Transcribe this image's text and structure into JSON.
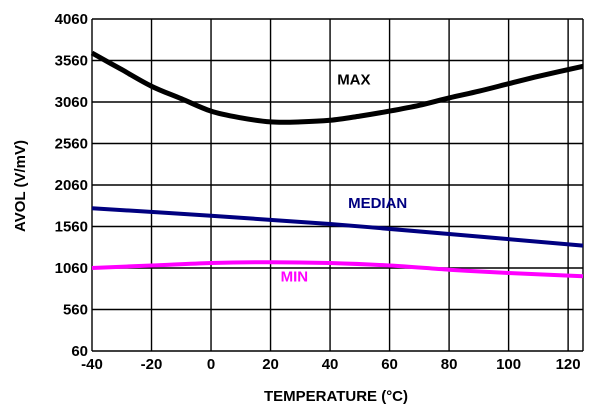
{
  "chart_data": {
    "type": "line",
    "title": "",
    "xlabel": "TEMPERATURE (°C)",
    "ylabel": "AVOL (V/mV)",
    "xlim": [
      -40,
      125
    ],
    "ylim": [
      60,
      4060
    ],
    "x_ticks": [
      "-40",
      "-20",
      "0",
      "20",
      "40",
      "60",
      "80",
      "100",
      "120"
    ],
    "y_ticks": [
      "60",
      "560",
      "1060",
      "1560",
      "2060",
      "2560",
      "3060",
      "3560",
      "4060"
    ],
    "grid": true,
    "legend": "none",
    "colors": {
      "max": "#000000",
      "median": "#000080",
      "min": "#ff00ff",
      "grid": "#000000"
    },
    "series": [
      {
        "name": "MAX",
        "points": [
          [
            -40,
            3650
          ],
          [
            -30,
            3450
          ],
          [
            -20,
            3250
          ],
          [
            -10,
            3100
          ],
          [
            0,
            2950
          ],
          [
            10,
            2870
          ],
          [
            20,
            2820
          ],
          [
            30,
            2820
          ],
          [
            40,
            2840
          ],
          [
            50,
            2890
          ],
          [
            60,
            2950
          ],
          [
            70,
            3020
          ],
          [
            80,
            3110
          ],
          [
            90,
            3190
          ],
          [
            100,
            3280
          ],
          [
            110,
            3370
          ],
          [
            125,
            3490
          ]
        ]
      },
      {
        "name": "MEDIAN",
        "points": [
          [
            -40,
            1780
          ],
          [
            0,
            1690
          ],
          [
            40,
            1590
          ],
          [
            80,
            1470
          ],
          [
            125,
            1330
          ]
        ]
      },
      {
        "name": "MIN",
        "points": [
          [
            -40,
            1060
          ],
          [
            -20,
            1090
          ],
          [
            0,
            1120
          ],
          [
            20,
            1130
          ],
          [
            40,
            1120
          ],
          [
            60,
            1090
          ],
          [
            80,
            1040
          ],
          [
            100,
            1000
          ],
          [
            125,
            960
          ]
        ]
      }
    ],
    "annotations": [
      {
        "text": "MAX",
        "x": 48,
        "y": 3270
      },
      {
        "text": "MEDIAN",
        "x": 56,
        "y": 1780
      },
      {
        "text": "MIN",
        "x": 28,
        "y": 900
      }
    ]
  }
}
